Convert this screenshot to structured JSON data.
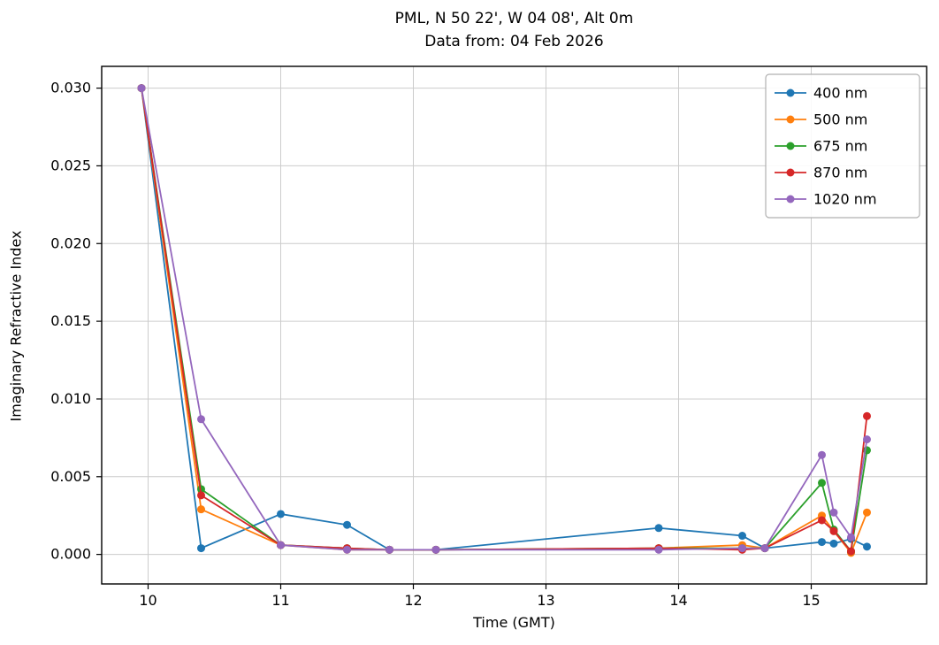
{
  "chart_data": {
    "type": "line",
    "title": "PML, N 50 22', W 04 08', Alt 0m",
    "subtitle": "Data from: 04 Feb 2026",
    "xlabel": "Time (GMT)",
    "ylabel": "Imaginary Refractive Index",
    "xlim": [
      9.65,
      15.87
    ],
    "ylim": [
      -0.0019,
      0.0314
    ],
    "grid": true,
    "grid_color": "#cccccc",
    "border_color": "#000000",
    "legend_position": "upper right",
    "x_ticks": [
      {
        "v": 10,
        "label": "10"
      },
      {
        "v": 11,
        "label": "11"
      },
      {
        "v": 12,
        "label": "12"
      },
      {
        "v": 13,
        "label": "13"
      },
      {
        "v": 14,
        "label": "14"
      },
      {
        "v": 15,
        "label": "15"
      }
    ],
    "y_ticks": [
      {
        "v": 0.0,
        "label": "0.000"
      },
      {
        "v": 0.005,
        "label": "0.005"
      },
      {
        "v": 0.01,
        "label": "0.010"
      },
      {
        "v": 0.015,
        "label": "0.015"
      },
      {
        "v": 0.02,
        "label": "0.020"
      },
      {
        "v": 0.025,
        "label": "0.025"
      },
      {
        "v": 0.03,
        "label": "0.030"
      }
    ],
    "x": [
      9.95,
      10.4,
      11.0,
      11.5,
      11.82,
      12.17,
      13.85,
      14.48,
      14.65,
      15.08,
      15.17,
      15.3,
      15.42
    ],
    "series": [
      {
        "name": "400 nm",
        "color": "#1f77b4",
        "values": [
          0.03,
          0.0004,
          0.0026,
          0.0019,
          0.0003,
          0.0003,
          0.0017,
          0.0012,
          0.0004,
          0.0008,
          0.0007,
          0.001,
          0.0005
        ]
      },
      {
        "name": "500 nm",
        "color": "#ff7f0e",
        "values": [
          0.03,
          0.0029,
          0.0006,
          0.0003,
          0.0003,
          0.0003,
          0.0004,
          0.0006,
          0.0004,
          0.0025,
          0.0015,
          0.0001,
          0.0027
        ]
      },
      {
        "name": "675 nm",
        "color": "#2ca02c",
        "values": [
          0.03,
          0.0042,
          0.0006,
          0.0004,
          0.0003,
          0.0003,
          0.0004,
          0.0004,
          0.0004,
          0.0046,
          0.0016,
          0.0002,
          0.0067
        ]
      },
      {
        "name": "870 nm",
        "color": "#d62728",
        "values": [
          0.03,
          0.0038,
          0.0006,
          0.0004,
          0.0003,
          0.0003,
          0.0004,
          0.0003,
          0.0004,
          0.0022,
          0.0015,
          0.0002,
          0.0089
        ]
      },
      {
        "name": "1020 nm",
        "color": "#9467bd",
        "values": [
          0.03,
          0.0087,
          0.0006,
          0.0003,
          0.0003,
          0.0003,
          0.0003,
          0.0004,
          0.0004,
          0.0064,
          0.0027,
          0.0011,
          0.0074
        ]
      }
    ]
  }
}
